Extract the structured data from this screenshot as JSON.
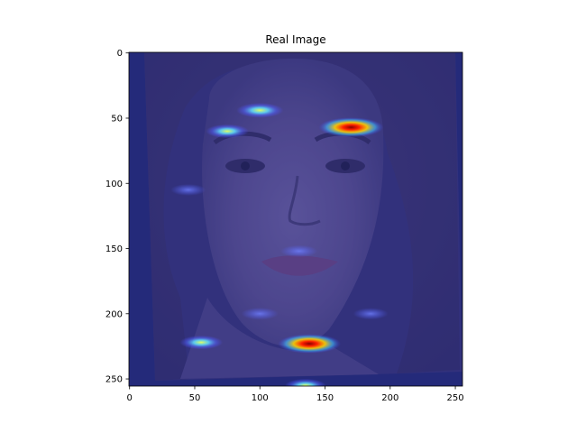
{
  "chart_data": {
    "type": "heatmap",
    "title": "Real Image",
    "xlabel": "",
    "ylabel": "",
    "xlim": [
      0,
      255
    ],
    "ylim": [
      255,
      0
    ],
    "x_ticks": [
      0,
      50,
      100,
      150,
      200,
      250
    ],
    "y_ticks": [
      0,
      50,
      100,
      150,
      200,
      250
    ],
    "grid": false,
    "colormap": "jet",
    "overlay_on_photo": true,
    "hotspots": [
      {
        "x": 170,
        "y": 57,
        "intensity": 1.0
      },
      {
        "x": 138,
        "y": 223,
        "intensity": 0.95
      },
      {
        "x": 100,
        "y": 44,
        "intensity": 0.55
      },
      {
        "x": 75,
        "y": 60,
        "intensity": 0.45
      },
      {
        "x": 55,
        "y": 222,
        "intensity": 0.45
      },
      {
        "x": 135,
        "y": 255,
        "intensity": 0.4
      },
      {
        "x": 130,
        "y": 152,
        "intensity": 0.3
      },
      {
        "x": 100,
        "y": 200,
        "intensity": 0.3
      },
      {
        "x": 185,
        "y": 200,
        "intensity": 0.25
      },
      {
        "x": 45,
        "y": 105,
        "intensity": 0.25
      }
    ]
  },
  "colors": {
    "background_dark_blue": "#1a1f5e",
    "overlay_blue": "#3a3f9a",
    "axis": "#000000"
  }
}
